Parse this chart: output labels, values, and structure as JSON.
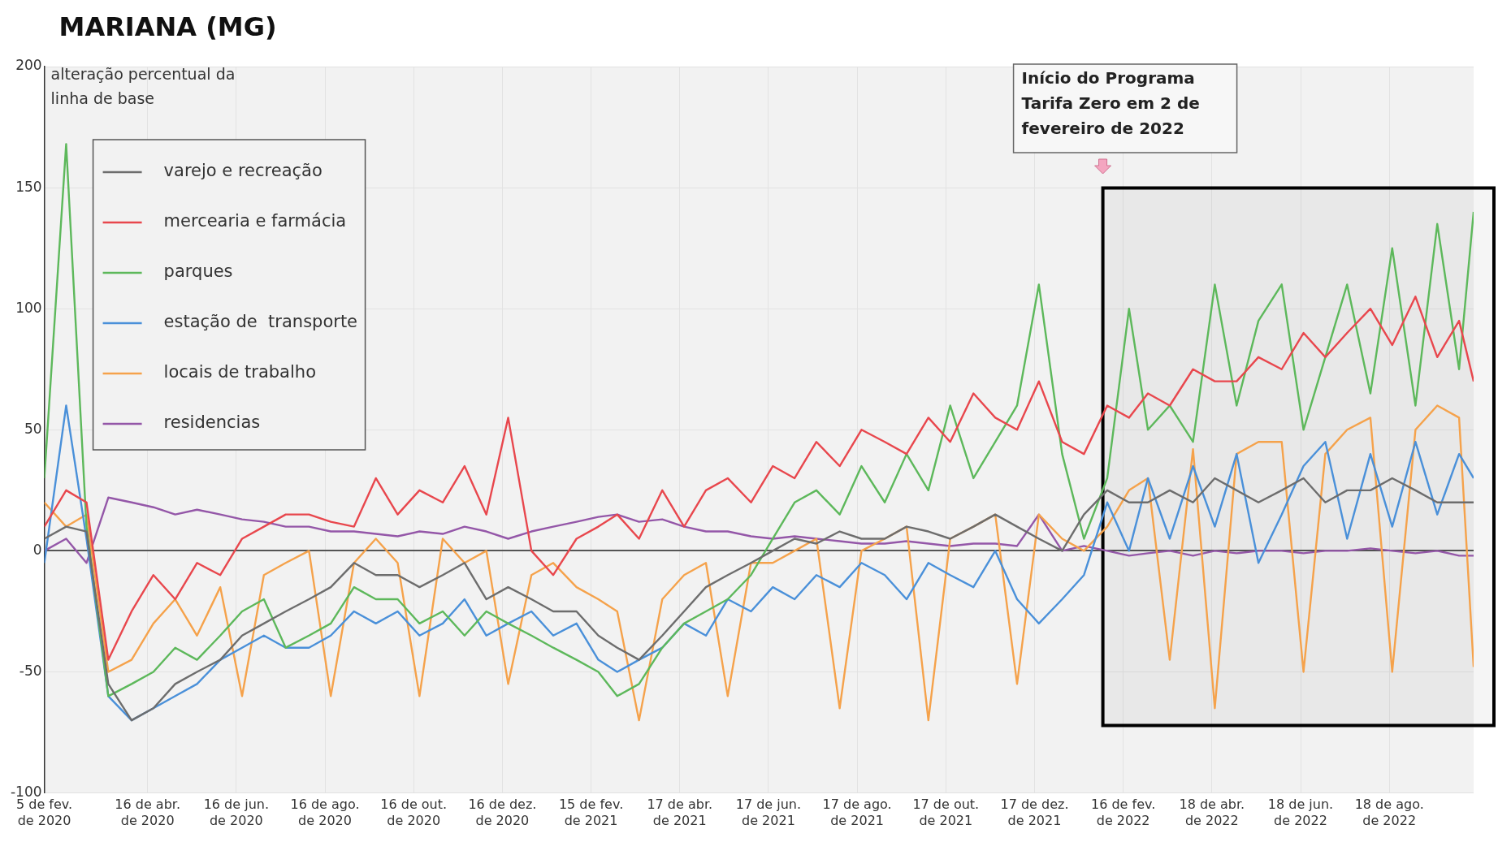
{
  "chart_data": {
    "type": "line",
    "title": "MARIANA (MG)",
    "ylabel": "alteração percentual da linha de base",
    "x": [
      "2020-02-05",
      "2020-02-20",
      "2020-03-05",
      "2020-03-20",
      "2020-04-05",
      "2020-04-20",
      "2020-05-05",
      "2020-05-20",
      "2020-06-05",
      "2020-06-20",
      "2020-07-05",
      "2020-07-20",
      "2020-08-05",
      "2020-08-20",
      "2020-09-05",
      "2020-09-20",
      "2020-10-05",
      "2020-10-20",
      "2020-11-05",
      "2020-11-20",
      "2020-12-05",
      "2020-12-20",
      "2021-01-05",
      "2021-01-20",
      "2021-02-05",
      "2021-02-20",
      "2021-03-05",
      "2021-03-20",
      "2021-04-05",
      "2021-04-20",
      "2021-05-05",
      "2021-05-20",
      "2021-06-05",
      "2021-06-20",
      "2021-07-05",
      "2021-07-20",
      "2021-08-05",
      "2021-08-20",
      "2021-09-05",
      "2021-09-20",
      "2021-10-05",
      "2021-10-20",
      "2021-11-05",
      "2021-11-20",
      "2021-12-05",
      "2021-12-20",
      "2022-01-05",
      "2022-01-20",
      "2022-02-05",
      "2022-02-20",
      "2022-03-05",
      "2022-03-20",
      "2022-04-05",
      "2022-04-20",
      "2022-05-05",
      "2022-05-20",
      "2022-06-05",
      "2022-06-20",
      "2022-07-05",
      "2022-07-20",
      "2022-08-05",
      "2022-08-20",
      "2022-09-05",
      "2022-09-20",
      "2022-10-05",
      "2022-10-15"
    ],
    "series": [
      {
        "name": "varejo e recreação",
        "color": "#6d6d6d",
        "values": [
          5,
          10,
          8,
          -55,
          -70,
          -65,
          -55,
          -50,
          -45,
          -35,
          -30,
          -25,
          -20,
          -15,
          -5,
          -10,
          -10,
          -15,
          -10,
          -5,
          -20,
          -15,
          -20,
          -25,
          -25,
          -35,
          -40,
          -45,
          -35,
          -25,
          -15,
          -10,
          -5,
          0,
          5,
          3,
          8,
          5,
          5,
          10,
          8,
          5,
          10,
          15,
          10,
          5,
          0,
          15,
          25,
          20,
          20,
          25,
          20,
          30,
          25,
          20,
          25,
          30,
          20,
          25,
          25,
          30,
          25,
          20,
          20,
          20
        ]
      },
      {
        "name": "mercearia e farmácia",
        "color": "#e8474d",
        "values": [
          10,
          25,
          20,
          -45,
          -25,
          -10,
          -20,
          -5,
          -10,
          5,
          10,
          15,
          15,
          12,
          10,
          30,
          15,
          25,
          20,
          35,
          15,
          55,
          0,
          -10,
          5,
          10,
          15,
          5,
          25,
          10,
          25,
          30,
          20,
          35,
          30,
          45,
          35,
          50,
          45,
          40,
          55,
          45,
          65,
          55,
          50,
          70,
          45,
          40,
          60,
          55,
          65,
          60,
          75,
          70,
          70,
          80,
          75,
          90,
          80,
          90,
          100,
          85,
          105,
          80,
          95,
          70
        ]
      },
      {
        "name": "parques",
        "color": "#5db85b",
        "values": [
          30,
          168,
          10,
          -60,
          -55,
          -50,
          -40,
          -45,
          -35,
          -25,
          -20,
          -40,
          -35,
          -30,
          -15,
          -20,
          -20,
          -30,
          -25,
          -35,
          -25,
          -30,
          -35,
          -40,
          -45,
          -50,
          -60,
          -55,
          -40,
          -30,
          -25,
          -20,
          -10,
          5,
          20,
          25,
          15,
          35,
          20,
          40,
          25,
          60,
          30,
          45,
          60,
          110,
          40,
          5,
          30,
          100,
          50,
          60,
          45,
          110,
          60,
          95,
          110,
          50,
          80,
          110,
          65,
          125,
          60,
          135,
          75,
          140
        ]
      },
      {
        "name": "estação de  transporte",
        "color": "#4a90d9",
        "values": [
          -5,
          60,
          5,
          -60,
          -70,
          -65,
          -60,
          -55,
          -45,
          -40,
          -35,
          -40,
          -40,
          -35,
          -25,
          -30,
          -25,
          -35,
          -30,
          -20,
          -35,
          -30,
          -25,
          -35,
          -30,
          -45,
          -50,
          -45,
          -40,
          -30,
          -35,
          -20,
          -25,
          -15,
          -20,
          -10,
          -15,
          -5,
          -10,
          -20,
          -5,
          -10,
          -15,
          0,
          -20,
          -30,
          -20,
          -10,
          20,
          0,
          30,
          5,
          35,
          10,
          40,
          -5,
          15,
          35,
          45,
          5,
          40,
          10,
          45,
          15,
          40,
          30
        ]
      },
      {
        "name": "locais de trabalho",
        "color": "#f5a24b",
        "values": [
          20,
          10,
          15,
          -50,
          -45,
          -30,
          -20,
          -35,
          -15,
          -60,
          -10,
          -5,
          0,
          -60,
          -5,
          5,
          -5,
          -60,
          5,
          -5,
          0,
          -55,
          -10,
          -5,
          -15,
          -20,
          -25,
          -70,
          -20,
          -10,
          -5,
          -60,
          -5,
          -5,
          0,
          5,
          -65,
          0,
          5,
          10,
          -70,
          5,
          10,
          15,
          -55,
          15,
          5,
          0,
          10,
          25,
          30,
          -45,
          42,
          -65,
          40,
          45,
          45,
          -50,
          40,
          50,
          55,
          -50,
          50,
          60,
          55,
          -48
        ]
      },
      {
        "name": "residencias",
        "color": "#9457a8",
        "values": [
          0,
          5,
          -5,
          22,
          20,
          18,
          15,
          17,
          15,
          13,
          12,
          10,
          10,
          8,
          8,
          7,
          6,
          8,
          7,
          10,
          8,
          5,
          8,
          10,
          12,
          14,
          15,
          12,
          13,
          10,
          8,
          8,
          6,
          5,
          6,
          5,
          4,
          3,
          3,
          4,
          3,
          2,
          3,
          3,
          2,
          15,
          0,
          2,
          0,
          -2,
          -1,
          0,
          -2,
          0,
          -1,
          0,
          0,
          -1,
          0,
          0,
          1,
          0,
          -1,
          0,
          -2,
          -2
        ]
      }
    ],
    "ylim": [
      -100,
      200
    ],
    "yticks": [
      -100,
      -50,
      0,
      50,
      100,
      150,
      200
    ],
    "xlim": [
      "2020-02-05",
      "2022-10-15"
    ],
    "xticks": [
      {
        "value": "2020-02-05",
        "label": "5 de fev. de 2020"
      },
      {
        "value": "2020-04-16",
        "label": "16 de abr. de 2020"
      },
      {
        "value": "2020-06-16",
        "label": "16 de jun. de 2020"
      },
      {
        "value": "2020-08-16",
        "label": "16 de ago. de 2020"
      },
      {
        "value": "2020-10-16",
        "label": "16 de out. de 2020"
      },
      {
        "value": "2020-12-16",
        "label": "16 de dez. de 2020"
      },
      {
        "value": "2021-02-15",
        "label": "15 de fev. de 2021"
      },
      {
        "value": "2021-04-17",
        "label": "17 de abr. de 2021"
      },
      {
        "value": "2021-06-17",
        "label": "17 de jun. de 2021"
      },
      {
        "value": "2021-08-17",
        "label": "17 de ago. de 2021"
      },
      {
        "value": "2021-10-17",
        "label": "17 de out. de 2021"
      },
      {
        "value": "2021-12-17",
        "label": "17 de dez. de 2021"
      },
      {
        "value": "2022-02-16",
        "label": "16 de fev. de 2022"
      },
      {
        "value": "2022-04-18",
        "label": "18 de abr. de 2022"
      },
      {
        "value": "2022-06-18",
        "label": "18 de jun. de 2022"
      },
      {
        "value": "2022-08-18",
        "label": "18 de ago. de 2022"
      }
    ],
    "bands": [
      {
        "axis": "x",
        "from": "2022-02-02",
        "to": "2022-10-15",
        "color": "#000000"
      }
    ],
    "annotations": [
      "Início do Programa Tarifa Zero em 2 de fevereiro de 2022"
    ],
    "grid": true,
    "legend": "top left",
    "marker": "none",
    "line_style": "solid"
  }
}
